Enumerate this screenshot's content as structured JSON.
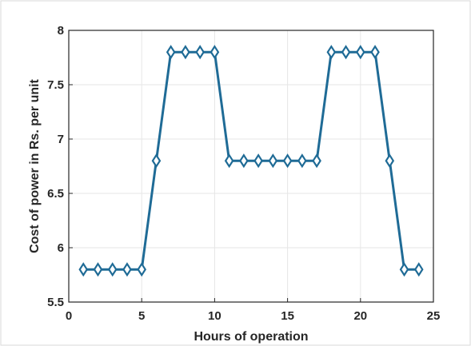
{
  "chart_data": {
    "type": "line",
    "title": "",
    "xlabel": "Hours of operation",
    "ylabel": "Cost of power in Rs. per unit",
    "xlim": [
      0,
      25
    ],
    "ylim": [
      5.5,
      8
    ],
    "xticks": [
      "0",
      "5",
      "10",
      "15",
      "20",
      "25"
    ],
    "yticks": [
      "5.5",
      "6",
      "6.5",
      "7",
      "7.5",
      "8"
    ],
    "grid": true,
    "marker": "diamond",
    "color": "#1f6b96",
    "x": [
      1,
      2,
      3,
      4,
      5,
      6,
      7,
      8,
      9,
      10,
      11,
      12,
      13,
      14,
      15,
      16,
      17,
      18,
      19,
      20,
      21,
      22,
      23,
      24
    ],
    "series": [
      {
        "values": [
          5.8,
          5.8,
          5.8,
          5.8,
          5.8,
          6.8,
          7.8,
          7.8,
          7.8,
          7.8,
          6.8,
          6.8,
          6.8,
          6.8,
          6.8,
          6.8,
          6.8,
          7.8,
          7.8,
          7.8,
          7.8,
          6.8,
          5.8,
          5.8
        ]
      }
    ]
  }
}
